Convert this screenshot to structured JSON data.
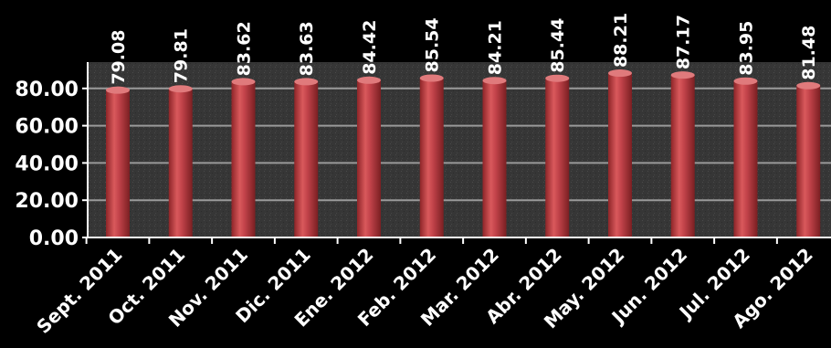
{
  "chart_data": {
    "type": "bar",
    "categories": [
      "Sept. 2011",
      "Oct. 2011",
      "Nov. 2011",
      "Dic. 2011",
      "Ene. 2012",
      "Feb. 2012",
      "Mar. 2012",
      "Abr. 2012",
      "May. 2012",
      "Jun. 2012",
      "Jul. 2012",
      "Ago. 2012"
    ],
    "values": [
      79.08,
      79.81,
      83.62,
      83.63,
      84.42,
      85.54,
      84.21,
      85.44,
      88.21,
      87.17,
      83.95,
      81.48
    ],
    "value_labels": [
      "79.08",
      "79.81",
      "83.62",
      "83.63",
      "84.42",
      "85.54",
      "84.21",
      "85.44",
      "88.21",
      "87.17",
      "83.95",
      "81.48"
    ],
    "ylim": [
      0,
      95
    ],
    "yticks": [
      0,
      20,
      40,
      60,
      80
    ],
    "ytick_labels": [
      "0.00",
      "20.00",
      "40.00",
      "60.00",
      "80.00"
    ],
    "grid": true,
    "title": "",
    "xlabel": "",
    "ylabel": "",
    "colors": {
      "background": "#000000",
      "plot_area": "#3a3a3a",
      "grid": "#9a9a9a",
      "bar": "#b8383c",
      "bar_highlight": "#e07a7c",
      "bar_shadow": "#7a1f22",
      "text": "#ffffff"
    }
  }
}
